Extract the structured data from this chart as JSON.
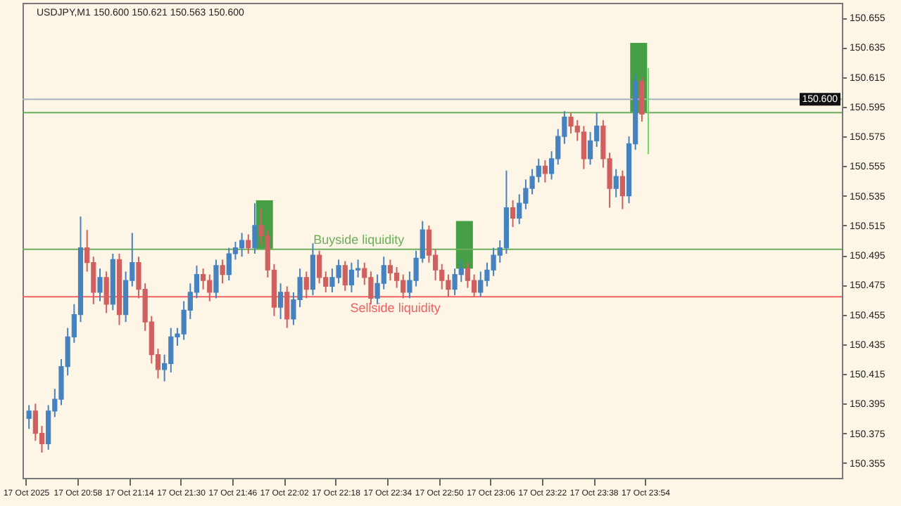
{
  "chart_data": {
    "type": "candlestick",
    "title": "USDJPY,M1  150.600 150.621 150.563 150.600",
    "x": [
      "2025-10-17T20:43",
      "2025-10-17T20:45",
      "2025-10-17T20:47",
      "2025-10-17T20:49",
      "2025-10-17T20:51",
      "2025-10-17T20:53",
      "2025-10-17T20:55",
      "2025-10-17T20:57",
      "2025-10-17T20:59",
      "2025-10-17T21:01",
      "2025-10-17T21:03",
      "2025-10-17T21:05",
      "2025-10-17T21:07",
      "2025-10-17T21:09",
      "2025-10-17T21:11",
      "2025-10-17T21:13",
      "2025-10-17T21:15",
      "2025-10-17T21:17",
      "2025-10-17T21:19",
      "2025-10-17T21:21",
      "2025-10-17T21:23",
      "2025-10-17T21:25",
      "2025-10-17T21:27",
      "2025-10-17T21:29",
      "2025-10-17T21:31",
      "2025-10-17T21:33",
      "2025-10-17T21:35",
      "2025-10-17T21:37",
      "2025-10-17T21:39",
      "2025-10-17T21:41",
      "2025-10-17T21:43",
      "2025-10-17T21:45",
      "2025-10-17T21:47",
      "2025-10-17T21:49",
      "2025-10-17T21:51",
      "2025-10-17T21:53",
      "2025-10-17T21:55",
      "2025-10-17T21:57",
      "2025-10-17T21:59",
      "2025-10-17T22:01",
      "2025-10-17T22:03",
      "2025-10-17T22:05",
      "2025-10-17T22:07",
      "2025-10-17T22:09",
      "2025-10-17T22:11",
      "2025-10-17T22:13",
      "2025-10-17T22:15",
      "2025-10-17T22:17",
      "2025-10-17T22:19",
      "2025-10-17T22:21",
      "2025-10-17T22:23",
      "2025-10-17T22:25",
      "2025-10-17T22:27",
      "2025-10-17T22:29",
      "2025-10-17T22:31",
      "2025-10-17T22:33",
      "2025-10-17T22:35",
      "2025-10-17T22:37",
      "2025-10-17T22:39",
      "2025-10-17T22:41",
      "2025-10-17T22:43",
      "2025-10-17T22:45",
      "2025-10-17T22:47",
      "2025-10-17T22:49",
      "2025-10-17T22:51",
      "2025-10-17T22:53",
      "2025-10-17T22:55",
      "2025-10-17T22:57",
      "2025-10-17T22:59",
      "2025-10-17T23:01",
      "2025-10-17T23:03",
      "2025-10-17T23:05",
      "2025-10-17T23:07",
      "2025-10-17T23:09",
      "2025-10-17T23:11",
      "2025-10-17T23:13",
      "2025-10-17T23:15",
      "2025-10-17T23:17",
      "2025-10-17T23:19",
      "2025-10-17T23:21",
      "2025-10-17T23:23",
      "2025-10-17T23:25",
      "2025-10-17T23:27",
      "2025-10-17T23:29",
      "2025-10-17T23:31",
      "2025-10-17T23:33",
      "2025-10-17T23:35",
      "2025-10-17T23:37",
      "2025-10-17T23:39",
      "2025-10-17T23:41",
      "2025-10-17T23:43",
      "2025-10-17T23:45",
      "2025-10-17T23:47",
      "2025-10-17T23:49",
      "2025-10-17T23:51",
      "2025-10-17T23:53",
      "2025-10-17T23:55"
    ],
    "ohlc": [
      [
        150.385,
        150.394,
        150.378,
        150.39
      ],
      [
        150.39,
        150.395,
        150.37,
        150.375
      ],
      [
        150.375,
        150.38,
        150.362,
        150.368
      ],
      [
        150.368,
        150.394,
        150.364,
        150.39
      ],
      [
        150.39,
        150.405,
        150.386,
        150.398
      ],
      [
        150.398,
        150.425,
        150.394,
        150.42
      ],
      [
        150.42,
        150.446,
        150.414,
        150.44
      ],
      [
        150.44,
        150.462,
        150.436,
        150.455
      ],
      [
        150.455,
        150.521,
        150.45,
        150.5
      ],
      [
        150.5,
        150.512,
        150.484,
        150.49
      ],
      [
        150.49,
        150.494,
        150.462,
        150.47
      ],
      [
        150.47,
        150.486,
        150.464,
        150.48
      ],
      [
        150.48,
        150.484,
        150.456,
        150.462
      ],
      [
        150.462,
        150.496,
        150.458,
        150.492
      ],
      [
        150.492,
        150.496,
        150.448,
        150.455
      ],
      [
        150.455,
        150.484,
        150.45,
        150.478
      ],
      [
        150.478,
        150.51,
        150.474,
        150.49
      ],
      [
        150.49,
        150.494,
        150.466,
        150.472
      ],
      [
        150.472,
        150.476,
        150.444,
        150.45
      ],
      [
        150.45,
        150.454,
        150.422,
        150.428
      ],
      [
        150.428,
        150.432,
        150.412,
        150.418
      ],
      [
        150.418,
        150.428,
        150.41,
        150.422
      ],
      [
        150.422,
        150.446,
        150.416,
        150.44
      ],
      [
        150.44,
        150.446,
        150.434,
        150.442
      ],
      [
        150.442,
        150.464,
        150.438,
        150.458
      ],
      [
        150.458,
        150.476,
        150.452,
        150.47
      ],
      [
        150.47,
        150.488,
        150.466,
        150.482
      ],
      [
        150.482,
        150.486,
        150.472,
        150.478
      ],
      [
        150.478,
        150.482,
        150.464,
        150.47
      ],
      [
        150.47,
        150.492,
        150.466,
        150.488
      ],
      [
        150.488,
        150.492,
        150.476,
        150.482
      ],
      [
        150.482,
        150.5,
        150.478,
        150.496
      ],
      [
        150.496,
        150.504,
        150.492,
        150.5
      ],
      [
        150.5,
        150.51,
        150.494,
        150.505
      ],
      [
        150.505,
        150.509,
        150.496,
        150.5
      ],
      [
        150.5,
        150.53,
        150.496,
        150.515
      ],
      [
        150.515,
        150.526,
        150.502,
        150.508
      ],
      [
        150.508,
        150.512,
        150.48,
        150.485
      ],
      [
        150.485,
        150.489,
        150.454,
        150.46
      ],
      [
        150.46,
        150.476,
        150.452,
        150.47
      ],
      [
        150.47,
        150.474,
        150.446,
        150.452
      ],
      [
        150.452,
        150.47,
        150.448,
        150.465
      ],
      [
        150.465,
        150.486,
        150.46,
        150.48
      ],
      [
        150.48,
        150.484,
        150.466,
        150.472
      ],
      [
        150.472,
        150.503,
        150.468,
        150.495
      ],
      [
        150.495,
        150.498,
        150.476,
        150.48
      ],
      [
        150.48,
        150.484,
        150.47,
        150.474
      ],
      [
        150.474,
        150.486,
        150.47,
        150.48
      ],
      [
        150.48,
        150.492,
        150.476,
        150.488
      ],
      [
        150.488,
        150.491,
        150.471,
        150.475
      ],
      [
        150.475,
        150.49,
        150.47,
        150.485
      ],
      [
        150.485,
        150.492,
        150.48,
        150.486
      ],
      [
        150.486,
        150.49,
        150.475,
        150.48
      ],
      [
        150.48,
        150.484,
        150.462,
        150.466
      ],
      [
        150.466,
        150.482,
        150.462,
        150.476
      ],
      [
        150.476,
        150.494,
        150.472,
        150.488
      ],
      [
        150.488,
        150.492,
        150.478,
        150.483
      ],
      [
        150.483,
        150.487,
        150.473,
        150.478
      ],
      [
        150.478,
        150.482,
        150.466,
        150.47
      ],
      [
        150.47,
        150.484,
        150.466,
        150.478
      ],
      [
        150.478,
        150.498,
        150.474,
        150.493
      ],
      [
        150.493,
        150.518,
        150.49,
        150.512
      ],
      [
        150.512,
        150.515,
        150.49,
        150.495
      ],
      [
        150.495,
        150.499,
        150.478,
        150.485
      ],
      [
        150.485,
        150.489,
        150.472,
        150.478
      ],
      [
        150.478,
        150.482,
        150.467,
        150.472
      ],
      [
        150.472,
        150.486,
        150.468,
        150.482
      ],
      [
        150.482,
        150.492,
        150.477,
        150.486
      ],
      [
        150.486,
        150.49,
        150.473,
        150.478
      ],
      [
        150.478,
        150.482,
        150.467,
        150.47
      ],
      [
        150.47,
        150.484,
        150.467,
        150.478
      ],
      [
        150.478,
        150.49,
        150.474,
        150.485
      ],
      [
        150.485,
        150.5,
        150.481,
        150.495
      ],
      [
        150.495,
        150.505,
        150.49,
        150.5
      ],
      [
        150.5,
        150.552,
        150.496,
        150.527
      ],
      [
        150.527,
        150.532,
        150.514,
        150.52
      ],
      [
        150.52,
        150.536,
        150.516,
        150.53
      ],
      [
        150.53,
        150.546,
        150.526,
        150.54
      ],
      [
        150.54,
        150.553,
        150.536,
        150.548
      ],
      [
        150.548,
        150.56,
        150.544,
        150.555
      ],
      [
        150.555,
        150.559,
        150.544,
        150.55
      ],
      [
        150.55,
        150.565,
        150.546,
        150.56
      ],
      [
        150.56,
        150.58,
        150.556,
        150.575
      ],
      [
        150.575,
        150.592,
        150.57,
        150.588
      ],
      [
        150.588,
        150.591,
        150.577,
        150.582
      ],
      [
        150.582,
        150.586,
        150.572,
        150.578
      ],
      [
        150.578,
        150.582,
        150.553,
        150.56
      ],
      [
        150.56,
        150.578,
        150.556,
        150.572
      ],
      [
        150.572,
        150.591,
        150.568,
        150.582
      ],
      [
        150.582,
        150.586,
        150.554,
        150.56
      ],
      [
        150.56,
        150.564,
        150.527,
        150.54
      ],
      [
        150.54,
        150.553,
        150.534,
        150.548
      ],
      [
        150.548,
        150.552,
        150.526,
        150.535
      ],
      [
        150.535,
        150.575,
        150.53,
        150.57
      ],
      [
        150.57,
        150.617,
        150.566,
        150.612
      ],
      [
        150.612,
        150.615,
        150.585,
        150.59
      ],
      [
        150.6,
        150.621,
        150.563,
        150.6
      ]
    ],
    "colors": [
      "#4682c0",
      "#d06060",
      "#d06060",
      "#4682c0",
      "#4682c0",
      "#4682c0",
      "#4682c0",
      "#4682c0",
      "#4682c0",
      "#d06060",
      "#d06060",
      "#4682c0",
      "#d06060",
      "#4682c0",
      "#d06060",
      "#4682c0",
      "#4682c0",
      "#d06060",
      "#d06060",
      "#d06060",
      "#d06060",
      "#4682c0",
      "#4682c0",
      "#4682c0",
      "#4682c0",
      "#4682c0",
      "#4682c0",
      "#d06060",
      "#d06060",
      "#4682c0",
      "#d06060",
      "#4682c0",
      "#4682c0",
      "#4682c0",
      "#d06060",
      "#4682c0",
      "#d06060",
      "#d06060",
      "#d06060",
      "#4682c0",
      "#d06060",
      "#4682c0",
      "#4682c0",
      "#d06060",
      "#4682c0",
      "#d06060",
      "#d06060",
      "#4682c0",
      "#4682c0",
      "#d06060",
      "#4682c0",
      "#4682c0",
      "#d06060",
      "#d06060",
      "#4682c0",
      "#4682c0",
      "#d06060",
      "#d06060",
      "#d06060",
      "#4682c0",
      "#4682c0",
      "#4682c0",
      "#d06060",
      "#d06060",
      "#d06060",
      "#d06060",
      "#4682c0",
      "#4682c0",
      "#d06060",
      "#d06060",
      "#4682c0",
      "#4682c0",
      "#4682c0",
      "#4682c0",
      "#4682c0",
      "#d06060",
      "#4682c0",
      "#4682c0",
      "#4682c0",
      "#4682c0",
      "#d06060",
      "#4682c0",
      "#4682c0",
      "#4682c0",
      "#d06060",
      "#d06060",
      "#d06060",
      "#4682c0",
      "#4682c0",
      "#d06060",
      "#d06060",
      "#4682c0",
      "#d06060",
      "#4682c0",
      "#4682c0",
      "#d06060",
      "#66dd66"
    ],
    "series": [
      {
        "type": "bar",
        "color": "#3c9a3c",
        "x": [
          "2025-10-17T21:56",
          "2025-10-17T22:58",
          "2025-10-17T23:52"
        ],
        "base": [
          150.499,
          150.486,
          150.591
        ],
        "values": [
          0.033,
          0.032,
          0.047
        ]
      }
    ],
    "ref_lines": [
      {
        "axis": "y",
        "value": 150.6,
        "label": "150.600",
        "color": "#a9b4bd"
      },
      {
        "axis": "y",
        "value": 150.591,
        "color": "#6cae5c"
      },
      {
        "axis": "y",
        "value": 150.499,
        "label": "Buyside liquidity",
        "color": "#6cae5c"
      },
      {
        "axis": "y",
        "value": 150.467,
        "label": "Sellside liquidity",
        "color": "#f06060"
      }
    ],
    "xlim": [
      "2025-10-17T20:41",
      "2025-10-18T00:55"
    ],
    "ylim": [
      150.345,
      150.665
    ],
    "xticks": [
      {
        "value": "2025-10-17T20:42",
        "label": "17 Oct 2025"
      },
      {
        "value": "2025-10-17T20:58",
        "label": "17 Oct 20:58"
      },
      {
        "value": "2025-10-17T21:14",
        "label": "17 Oct 21:14"
      },
      {
        "value": "2025-10-17T21:30",
        "label": "17 Oct 21:30"
      },
      {
        "value": "2025-10-17T21:46",
        "label": "17 Oct 21:46"
      },
      {
        "value": "2025-10-17T22:02",
        "label": "17 Oct 22:02"
      },
      {
        "value": "2025-10-17T22:18",
        "label": "17 Oct 22:18"
      },
      {
        "value": "2025-10-17T22:34",
        "label": "17 Oct 22:34"
      },
      {
        "value": "2025-10-17T22:50",
        "label": "17 Oct 22:50"
      },
      {
        "value": "2025-10-17T23:06",
        "label": "17 Oct 23:06"
      },
      {
        "value": "2025-10-17T23:22",
        "label": "17 Oct 23:22"
      },
      {
        "value": "2025-10-17T23:38",
        "label": "17 Oct 23:38"
      },
      {
        "value": "2025-10-17T23:54",
        "label": "17 Oct 23:54"
      }
    ],
    "yticks": [
      150.355,
      150.375,
      150.395,
      150.415,
      150.435,
      150.455,
      150.475,
      150.495,
      150.515,
      150.535,
      150.555,
      150.575,
      150.595,
      150.615,
      150.635,
      150.655
    ]
  }
}
